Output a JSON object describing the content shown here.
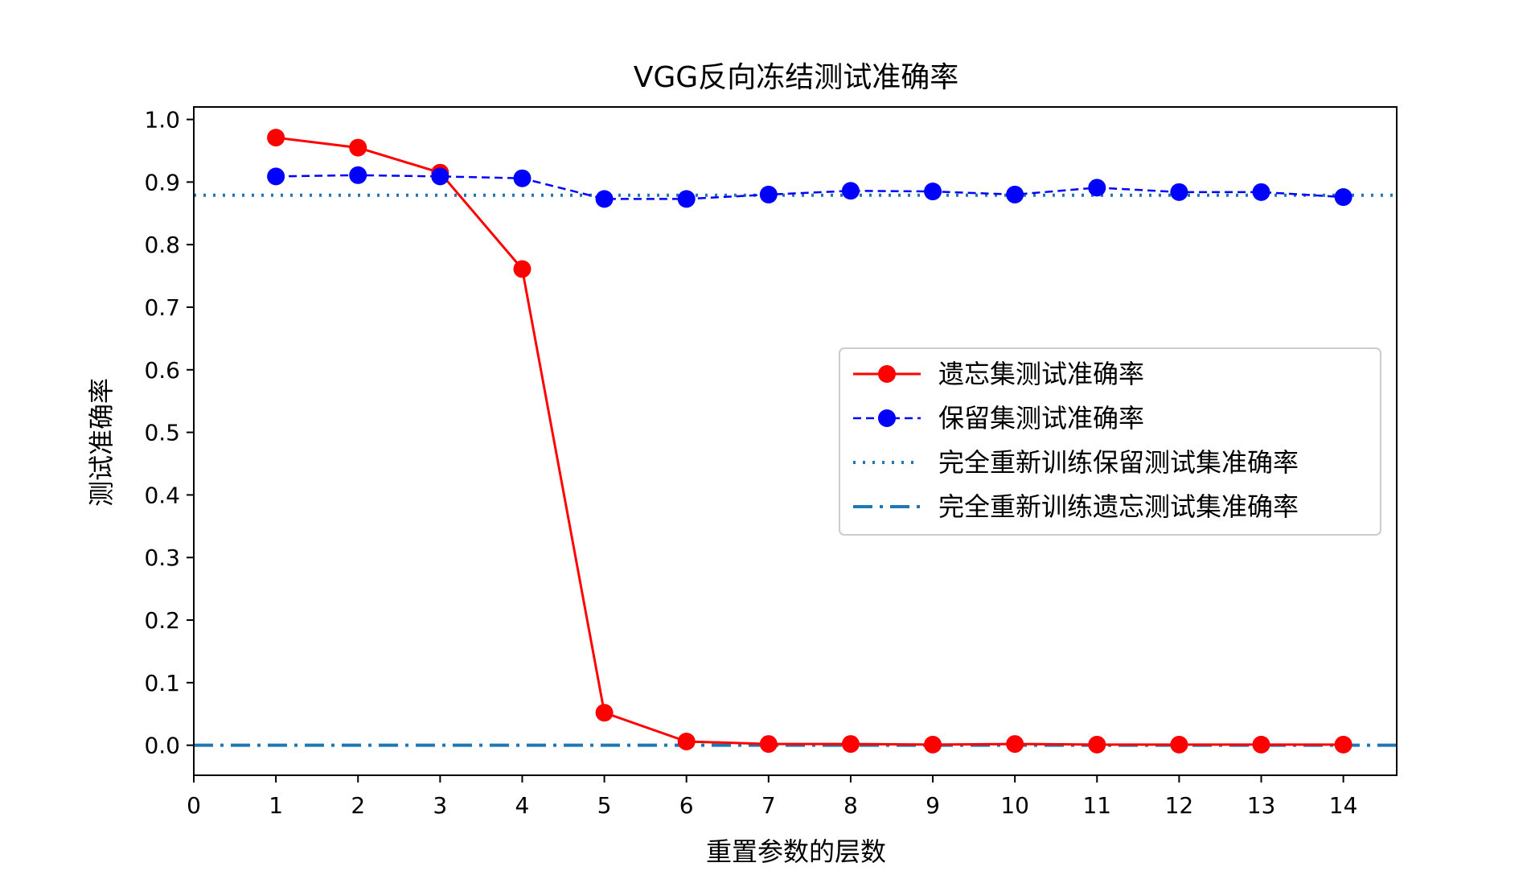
{
  "chart_data": {
    "type": "line",
    "title": "VGG反向冻结测试准确率",
    "xlabel": "重置参数的层数",
    "ylabel": "测试准确率",
    "xlim": [
      0,
      14.65
    ],
    "ylim": [
      -0.048,
      1.02
    ],
    "x_ticks": [
      0,
      1,
      2,
      3,
      4,
      5,
      6,
      7,
      8,
      9,
      10,
      11,
      12,
      13,
      14
    ],
    "y_ticks": [
      0.0,
      0.1,
      0.2,
      0.3,
      0.4,
      0.5,
      0.6,
      0.7,
      0.8,
      0.9,
      1.0
    ],
    "y_tick_labels": [
      "0.0",
      "0.1",
      "0.2",
      "0.3",
      "0.4",
      "0.5",
      "0.6",
      "0.7",
      "0.8",
      "0.9",
      "1.0"
    ],
    "grid": false,
    "legend_position": "center-right",
    "x": [
      1,
      2,
      3,
      4,
      5,
      6,
      7,
      8,
      9,
      10,
      11,
      12,
      13,
      14
    ],
    "series": [
      {
        "name": "遗忘集测试准确率",
        "style": "solid-marker",
        "color": "#ff0000",
        "values": [
          0.971,
          0.955,
          0.915,
          0.761,
          0.052,
          0.006,
          0.002,
          0.002,
          0.001,
          0.002,
          0.001,
          0.001,
          0.001,
          0.001
        ]
      },
      {
        "name": "保留集测试准确率",
        "style": "dashed-marker",
        "color": "#0000ff",
        "values": [
          0.909,
          0.911,
          0.909,
          0.906,
          0.873,
          0.873,
          0.88,
          0.886,
          0.885,
          0.88,
          0.891,
          0.884,
          0.884,
          0.876
        ]
      },
      {
        "name": "完全重新训练保留测试集准确率",
        "style": "dotted-hline",
        "color": "#1f77b4",
        "value": 0.879
      },
      {
        "name": "完全重新训练遗忘测试集准确率",
        "style": "dashdot-hline",
        "color": "#1f77b4",
        "value": 0.0
      }
    ]
  }
}
